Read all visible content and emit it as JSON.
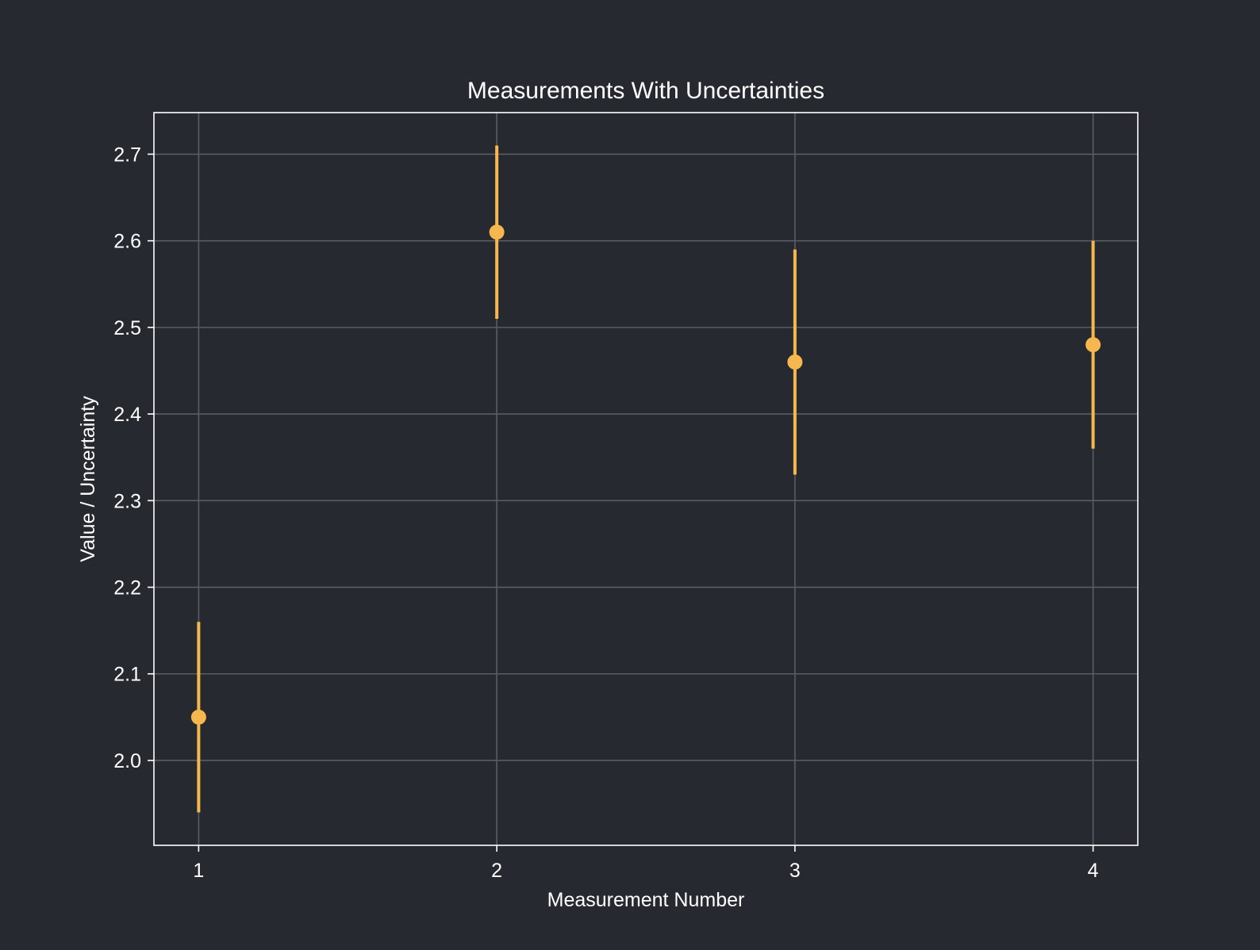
{
  "chart_data": {
    "type": "scatter",
    "title": "Measurements With Uncertainties",
    "xlabel": "Measurement Number",
    "ylabel": "Value / Uncertainty",
    "x": [
      1,
      2,
      3,
      4
    ],
    "y": [
      2.05,
      2.61,
      2.46,
      2.48
    ],
    "y_err_upper": [
      0.11,
      0.1,
      0.13,
      0.12
    ],
    "y_err_lower": [
      0.11,
      0.1,
      0.13,
      0.12
    ],
    "xticks": [
      "1",
      "2",
      "3",
      "4"
    ],
    "yticks": [
      "2.0",
      "2.1",
      "2.2",
      "2.3",
      "2.4",
      "2.5",
      "2.6",
      "2.7"
    ],
    "xlim": [
      0.85,
      4.15
    ],
    "ylim": [
      1.902,
      2.748
    ],
    "grid": true,
    "legend": "none",
    "colors": {
      "background": "#262a30",
      "marker": "#f6b84e",
      "grid": "#5a5d61",
      "axes": "#ffffff",
      "text": "#ffffff"
    }
  }
}
